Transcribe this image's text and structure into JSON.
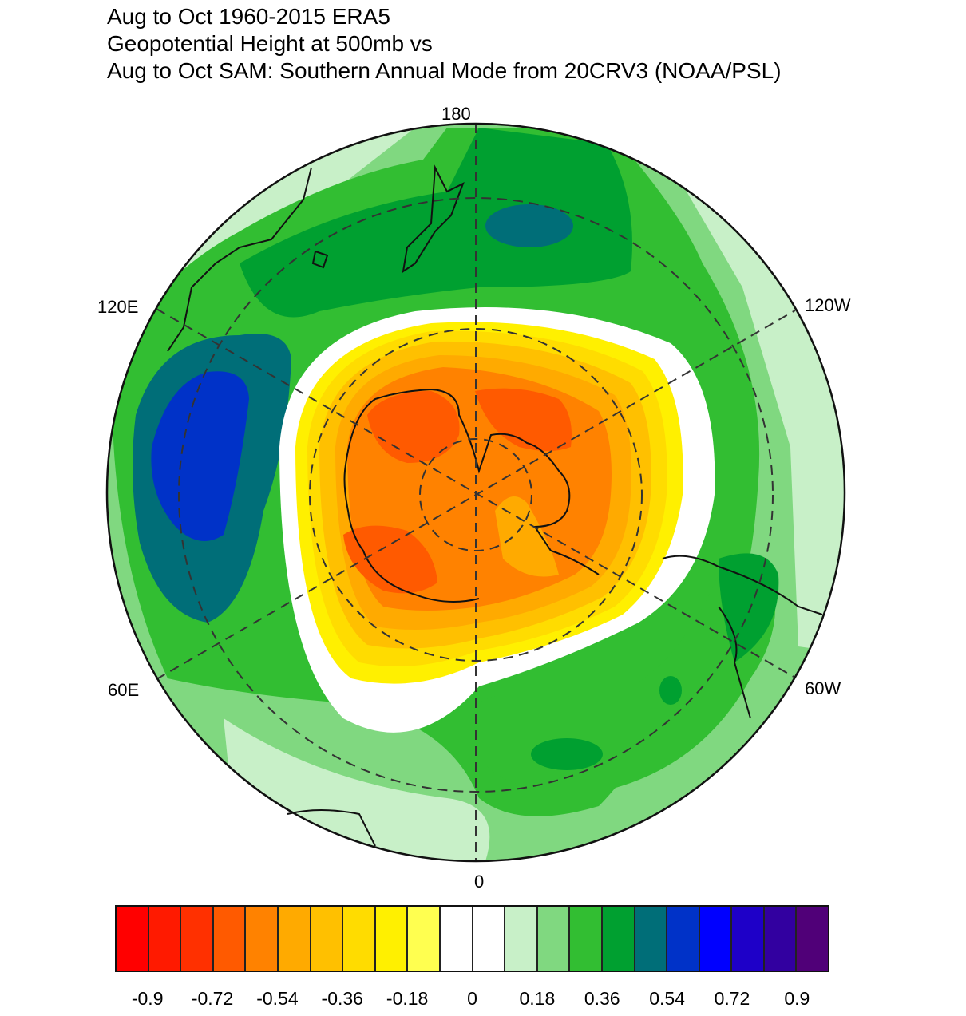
{
  "title": {
    "line1": "Aug to Oct 1960-2015 ERA5",
    "line2": "Geopotential Height at 500mb vs",
    "line3": "Aug to Oct SAM: Southern Annual Mode from 20CRV3 (NOAA/PSL)"
  },
  "map": {
    "projection": "south polar stereographic",
    "longitude_labels": {
      "top": "180",
      "bottom": "0",
      "upper_left": "120E",
      "upper_right": "120W",
      "lower_left": "60E",
      "lower_right": "60W"
    }
  },
  "colorbar": {
    "colors": [
      "#ff0000",
      "#ff1a00",
      "#ff3000",
      "#ff5a00",
      "#ff8200",
      "#ffaa00",
      "#ffc000",
      "#ffdc00",
      "#fff000",
      "#ffff50",
      "#ffffff",
      "#ffffff",
      "#c8f0c8",
      "#80d880",
      "#32be32",
      "#00a030",
      "#006e78",
      "#0032c8",
      "#0000ff",
      "#1e00c8",
      "#3200a0",
      "#500078"
    ],
    "tick_labels": [
      "-0.9",
      "-0.72",
      "-0.54",
      "-0.36",
      "-0.18",
      "0",
      "0.18",
      "0.36",
      "0.54",
      "0.72",
      "0.9"
    ]
  }
}
